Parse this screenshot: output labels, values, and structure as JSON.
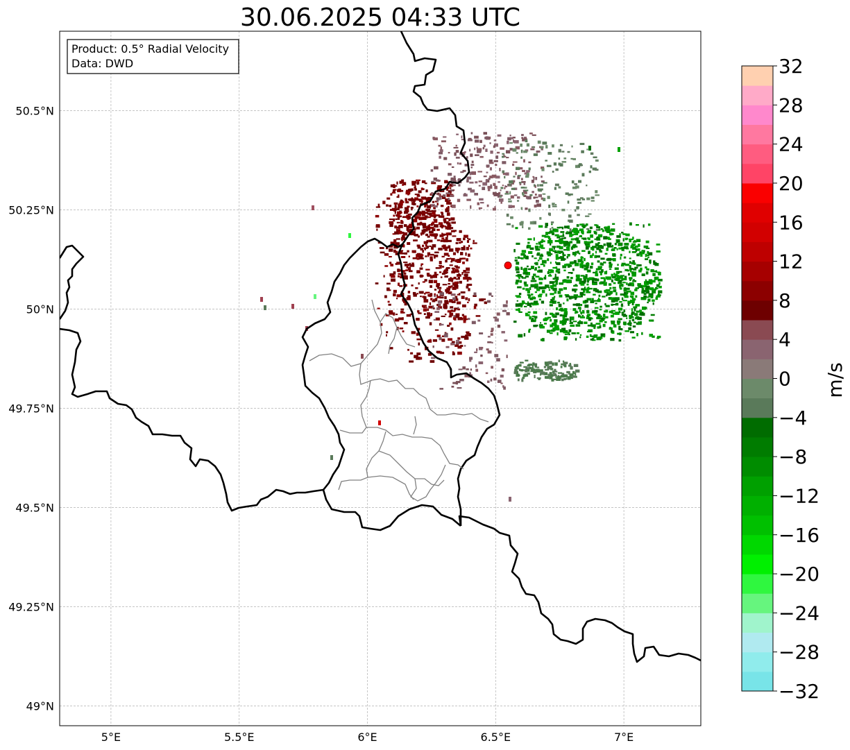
{
  "title": "30.06.2025 04:33 UTC",
  "info_box": {
    "line1": "Product: 0.5° Radial Velocity",
    "line2": "Data: DWD"
  },
  "map": {
    "lon_range": [
      4.8,
      7.3
    ],
    "lat_range": [
      48.95,
      50.7
    ],
    "lon_ticks": [
      {
        "value": 5.0,
        "label": "5°E"
      },
      {
        "value": 5.5,
        "label": "5.5°E"
      },
      {
        "value": 6.0,
        "label": "6°E"
      },
      {
        "value": 6.5,
        "label": "6.5°E"
      },
      {
        "value": 7.0,
        "label": "7°E"
      }
    ],
    "lat_ticks": [
      {
        "value": 50.5,
        "label": "50.5°N"
      },
      {
        "value": 50.25,
        "label": "50.25°N"
      },
      {
        "value": 50.0,
        "label": "50°N"
      },
      {
        "value": 49.75,
        "label": "49.75°N"
      },
      {
        "value": 49.5,
        "label": "49.5°N"
      },
      {
        "value": 49.25,
        "label": "49.25°N"
      },
      {
        "value": 49.0,
        "label": "49°N"
      }
    ],
    "gridlines": true,
    "radar_site": {
      "lon": 6.548,
      "lat": 50.11,
      "color": "#ff0000"
    }
  },
  "colorbar": {
    "unit": "m/s",
    "min": -32,
    "max": 32,
    "labels": [
      {
        "value": 32,
        "text": "32"
      },
      {
        "value": 28,
        "text": "28"
      },
      {
        "value": 24,
        "text": "24"
      },
      {
        "value": 20,
        "text": "20"
      },
      {
        "value": 16,
        "text": "16"
      },
      {
        "value": 12,
        "text": "12"
      },
      {
        "value": 8,
        "text": "8"
      },
      {
        "value": 4,
        "text": "4"
      },
      {
        "value": 0,
        "text": "0"
      },
      {
        "value": -4,
        "text": "−4"
      },
      {
        "value": -8,
        "text": "−8"
      },
      {
        "value": -12,
        "text": "−12"
      },
      {
        "value": -16,
        "text": "−16"
      },
      {
        "value": -20,
        "text": "−20"
      },
      {
        "value": -24,
        "text": "−24"
      },
      {
        "value": -28,
        "text": "−28"
      },
      {
        "value": -32,
        "text": "−32"
      }
    ],
    "colors_bottom_to_top": [
      "#78e4e8",
      "#90ecec",
      "#b0eaf0",
      "#a0f4cc",
      "#66f57e",
      "#2ff73f",
      "#00f000",
      "#00d800",
      "#00c000",
      "#00b000",
      "#00a000",
      "#008c00",
      "#007c00",
      "#006c00",
      "#5a7a5a",
      "#6c8a6a",
      "#8a7a78",
      "#8a6470",
      "#8a4a52",
      "#6e0000",
      "#8c0000",
      "#a60000",
      "#be0000",
      "#d20000",
      "#e00000",
      "#fa0000",
      "#ff4466",
      "#ff5c80",
      "#ff78a0",
      "#ff88cc",
      "#ffaac8",
      "#ffd0b0"
    ]
  }
}
